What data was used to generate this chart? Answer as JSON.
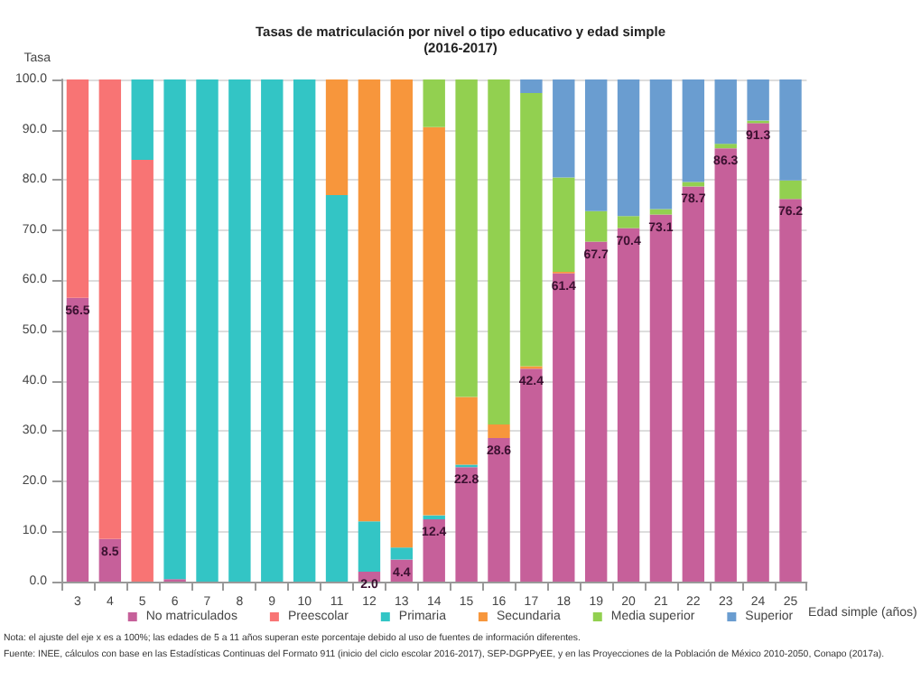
{
  "chart_data": {
    "type": "bar",
    "stacked": true,
    "title": "Tasas de matriculación por nivel o tipo educativo y edad simple\n(2016-2017)",
    "ylabel": "Tasa",
    "xlabel": "Edad simple (años)",
    "categories": [
      "3",
      "4",
      "5",
      "6",
      "7",
      "8",
      "9",
      "10",
      "11",
      "12",
      "13",
      "14",
      "15",
      "16",
      "17",
      "18",
      "19",
      "20",
      "21",
      "22",
      "23",
      "24",
      "25"
    ],
    "series": [
      {
        "name": "No matriculados",
        "color": "#c6609a",
        "values": [
          56.5,
          8.5,
          0,
          0.5,
          0,
          0,
          0,
          0,
          0,
          2.0,
          4.4,
          12.4,
          22.8,
          28.6,
          42.4,
          61.4,
          67.7,
          70.4,
          73.1,
          78.7,
          86.3,
          91.3,
          76.2
        ],
        "value_labels": [
          "56.5",
          "8.5",
          null,
          null,
          null,
          null,
          null,
          null,
          null,
          "2.0",
          "4.4",
          "12.4",
          "22.8",
          "28.6",
          "42.4",
          "61.4",
          "67.7",
          "70.4",
          "73.1",
          "78.7",
          "86.3",
          "91.3",
          "76.2"
        ]
      },
      {
        "name": "Preescolar",
        "color": "#f87474",
        "values": [
          43.5,
          91.5,
          84,
          0,
          0,
          0,
          0,
          0,
          0,
          0,
          0,
          0,
          0,
          0,
          0,
          0,
          0,
          0,
          0,
          0,
          0,
          0,
          0
        ]
      },
      {
        "name": "Primaria",
        "color": "#33c5c5",
        "values": [
          0,
          0,
          16,
          99.5,
          100,
          100,
          100,
          100,
          77,
          10,
          2.4,
          0.8,
          0.5,
          0,
          0,
          0,
          0,
          0,
          0,
          0,
          0,
          0,
          0
        ]
      },
      {
        "name": "Secundaria",
        "color": "#f7963c",
        "values": [
          0,
          0,
          0,
          0,
          0,
          0,
          0,
          0,
          23,
          88,
          93.2,
          77.3,
          13.5,
          2.7,
          0.5,
          0.3,
          0,
          0,
          0,
          0,
          0,
          0,
          0
        ]
      },
      {
        "name": "Media superior",
        "color": "#92d050",
        "values": [
          0,
          0,
          0,
          0,
          0,
          0,
          0,
          0,
          0,
          0,
          0,
          9.5,
          63.2,
          68.7,
          54.4,
          18.8,
          6.1,
          2.4,
          1.1,
          0.9,
          0.9,
          0.5,
          3.7
        ]
      },
      {
        "name": "Superior",
        "color": "#6a9dd0",
        "values": [
          0,
          0,
          0,
          0,
          0,
          0,
          0,
          0,
          0,
          0,
          0,
          0,
          0,
          0,
          2.7,
          19.5,
          26.2,
          27.2,
          25.8,
          20.4,
          12.8,
          8.2,
          20.1
        ]
      }
    ],
    "ylim": [
      0,
      100
    ],
    "yticks": [
      {
        "value": 0,
        "label": "0.0"
      },
      {
        "value": 10,
        "label": "10.0"
      },
      {
        "value": 20,
        "label": "20.0"
      },
      {
        "value": 30,
        "label": "30.0"
      },
      {
        "value": 40,
        "label": "40.0"
      },
      {
        "value": 50,
        "label": "50.0"
      },
      {
        "value": 60,
        "label": "60.0"
      },
      {
        "value": 70,
        "label": "70.0"
      },
      {
        "value": 80,
        "label": "80.0"
      },
      {
        "value": 90,
        "label": "90.0"
      },
      {
        "value": 100,
        "label": "100.0"
      }
    ],
    "grid": "y",
    "legend": "bottom",
    "annotations": [
      "Nota: el ajuste del eje x es a 100%; las edades de 5 a 11 años superan este porcentaje debido al uso de fuentes de información diferentes.",
      "Fuente: INEE, cálculos con base en las Estadísticas Continuas del Formato 911 (inicio del ciclo escolar 2016-2017), SEP-DGPPyEE, y en las Proyecciones de la Población de México 2010-2050, Conapo (2017a)."
    ]
  }
}
